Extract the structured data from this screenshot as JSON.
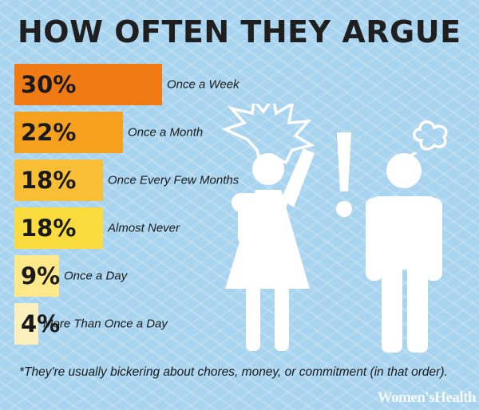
{
  "title": "HOW OFTEN THEY ARGUE",
  "footnote": "*They're usually bickering about chores, money, or commitment (in that order).",
  "brand": "Women'sHealth",
  "illustration": {
    "icons": [
      "angry-burst-icon",
      "woman-figure-icon",
      "exclamation-icon",
      "steam-puff-icon",
      "man-figure-icon"
    ],
    "color": "#ffffff"
  },
  "chart_data": {
    "type": "bar",
    "orientation": "horizontal",
    "title": "HOW OFTEN THEY ARGUE",
    "categories": [
      "Once a Week",
      "Once a Month",
      "Once Every Few Months",
      "Almost Never",
      "Once a Day",
      "More Than Once a Day"
    ],
    "values": [
      30,
      22,
      18,
      18,
      9,
      4
    ],
    "value_labels": [
      "30%",
      "22%",
      "18%",
      "18%",
      "9%",
      "4%"
    ],
    "unit": "%",
    "colors": [
      "#f07a14",
      "#f5a11f",
      "#f8be35",
      "#fbdc3e",
      "#fde88a",
      "#fdf0bf"
    ],
    "legend": "none",
    "grid": false
  }
}
